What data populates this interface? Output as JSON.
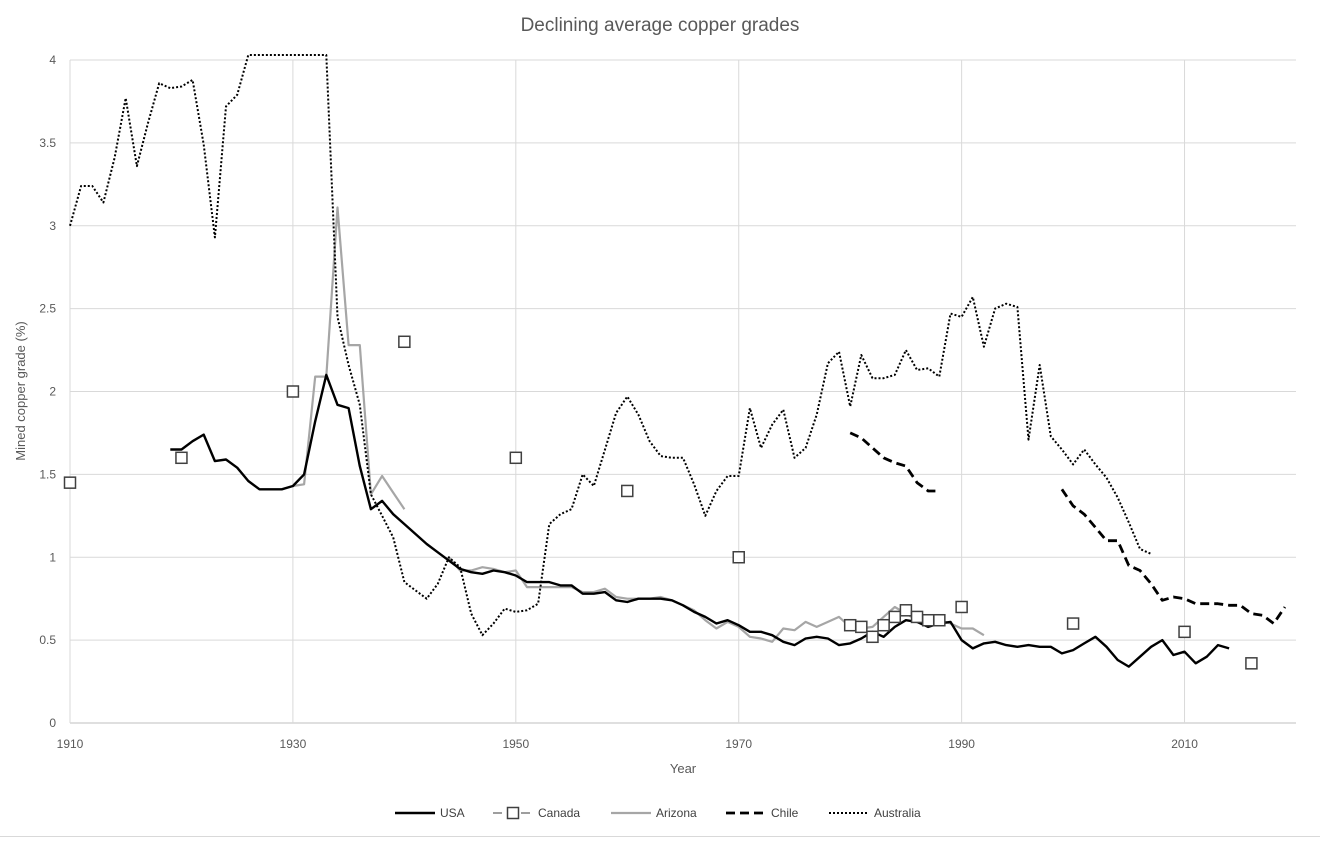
{
  "chart_data": {
    "type": "line",
    "title": "Declining average copper grades",
    "xlabel": "Year",
    "ylabel": "Mined copper grade (%)",
    "xlim": [
      1910,
      2020
    ],
    "ylim": [
      0,
      4
    ],
    "x_ticks": [
      1910,
      1930,
      1950,
      1970,
      1990,
      2010
    ],
    "y_ticks": [
      0,
      0.5,
      1,
      1.5,
      2,
      2.5,
      3,
      3.5,
      4
    ],
    "y_tick_labels": [
      "0",
      "0.5",
      "1",
      "1.5",
      "2",
      "2.5",
      "3",
      "3.5",
      "4"
    ],
    "grid": "on",
    "legend_position": "bottom",
    "series": [
      {
        "name": "USA",
        "style": "solid",
        "color": "#000000",
        "marker": "none",
        "x": [
          1919,
          1920,
          1921,
          1922,
          1923,
          1924,
          1925,
          1926,
          1927,
          1928,
          1929,
          1930,
          1931,
          1932,
          1933,
          1934,
          1935,
          1936,
          1937,
          1938,
          1939,
          1940,
          1941,
          1942,
          1943,
          1944,
          1945,
          1946,
          1947,
          1948,
          1949,
          1950,
          1951,
          1952,
          1953,
          1954,
          1955,
          1956,
          1957,
          1958,
          1959,
          1960,
          1961,
          1962,
          1963,
          1964,
          1965,
          1966,
          1967,
          1968,
          1969,
          1970,
          1971,
          1972,
          1973,
          1974,
          1975,
          1976,
          1977,
          1978,
          1979,
          1980,
          1981,
          1982,
          1983,
          1984,
          1985,
          1986,
          1987,
          1988,
          1989,
          1990,
          1991,
          1992,
          1993,
          1994,
          1995,
          1996,
          1997,
          1998,
          1999,
          2000,
          2001,
          2002,
          2003,
          2004,
          2005,
          2006,
          2007,
          2008,
          2009,
          2010,
          2011,
          2012,
          2013,
          2014
        ],
        "y": [
          1.65,
          1.65,
          1.7,
          1.74,
          1.58,
          1.59,
          1.54,
          1.46,
          1.41,
          1.41,
          1.41,
          1.43,
          1.5,
          1.82,
          2.1,
          1.92,
          1.9,
          1.55,
          1.29,
          1.34,
          1.26,
          1.2,
          1.14,
          1.08,
          1.03,
          0.98,
          0.93,
          0.91,
          0.9,
          0.92,
          0.91,
          0.89,
          0.85,
          0.85,
          0.85,
          0.83,
          0.83,
          0.78,
          0.78,
          0.79,
          0.74,
          0.73,
          0.75,
          0.75,
          0.75,
          0.74,
          0.71,
          0.67,
          0.64,
          0.6,
          0.62,
          0.59,
          0.55,
          0.55,
          0.53,
          0.49,
          0.47,
          0.51,
          0.52,
          0.51,
          0.47,
          0.48,
          0.51,
          0.55,
          0.52,
          0.58,
          0.62,
          0.61,
          0.58,
          0.6,
          0.61,
          0.5,
          0.45,
          0.48,
          0.49,
          0.47,
          0.46,
          0.47,
          0.46,
          0.46,
          0.42,
          0.44,
          0.48,
          0.52,
          0.46,
          0.38,
          0.34,
          0.4,
          0.46,
          0.5,
          0.41,
          0.43,
          0.36,
          0.4,
          0.47,
          0.45
        ]
      },
      {
        "name": "Canada",
        "style": "dashed",
        "color": "#7f7f7f",
        "marker": "square",
        "x": [
          1910,
          1920,
          1930,
          1940,
          1950,
          1960,
          1970,
          1980,
          1981,
          1982,
          1983,
          1984,
          1985,
          1986,
          1987,
          1988,
          1990,
          2000,
          2010,
          2016
        ],
        "y": [
          1.45,
          1.6,
          2.0,
          2.3,
          1.6,
          1.4,
          1.0,
          0.59,
          0.58,
          0.52,
          0.59,
          0.64,
          0.68,
          0.64,
          0.62,
          0.62,
          0.7,
          0.6,
          0.55,
          0.36
        ]
      },
      {
        "name": "Arizona",
        "style": "solid",
        "color": "#a6a6a6",
        "marker": "none",
        "x": [
          1930,
          1931,
          1932,
          1933,
          1934,
          1935,
          1936,
          1937,
          1938,
          1939,
          1940,
          null,
          1944,
          1945,
          1946,
          1947,
          1948,
          1949,
          1950,
          1951,
          1952,
          1953,
          1954,
          1955,
          1956,
          1957,
          1958,
          1959,
          1960,
          1961,
          1962,
          1963,
          1964,
          1965,
          1966,
          1967,
          1968,
          1969,
          1970,
          1971,
          1972,
          1973,
          1974,
          1975,
          1976,
          1977,
          1978,
          1979,
          1980,
          1981,
          1982,
          1983,
          1984,
          1985,
          1986,
          1987,
          1988,
          1989,
          1990,
          1991,
          1992
        ],
        "y": [
          1.43,
          1.44,
          2.09,
          2.09,
          3.11,
          2.28,
          2.28,
          1.38,
          1.49,
          1.39,
          1.29,
          null,
          1.0,
          0.92,
          0.92,
          0.94,
          0.93,
          0.91,
          0.92,
          0.82,
          0.82,
          0.82,
          0.82,
          0.82,
          0.79,
          0.79,
          0.81,
          0.76,
          0.75,
          0.75,
          0.75,
          0.76,
          0.74,
          0.71,
          0.68,
          0.62,
          0.57,
          0.61,
          0.58,
          0.52,
          0.51,
          0.49,
          0.57,
          0.56,
          0.61,
          0.58,
          0.61,
          0.64,
          0.58,
          0.57,
          0.58,
          0.64,
          0.7,
          0.66,
          0.62,
          0.6,
          0.62,
          0.6,
          0.57,
          0.57,
          0.53
        ]
      },
      {
        "name": "Chile",
        "style": "dashed",
        "color": "#000000",
        "marker": "none",
        "x": [
          1980,
          1981,
          1982,
          1983,
          1984,
          1985,
          1986,
          1987,
          1988,
          null,
          1999,
          2000,
          2001,
          2002,
          2003,
          2004,
          2005,
          2006,
          2007,
          2008,
          2009,
          2010,
          2011,
          2012,
          2013,
          2014,
          2015,
          2016,
          2017,
          2018,
          2019
        ],
        "y": [
          1.75,
          1.72,
          1.66,
          1.6,
          1.57,
          1.55,
          1.45,
          1.4,
          1.4,
          null,
          1.41,
          1.31,
          1.26,
          1.18,
          1.1,
          1.1,
          0.95,
          0.92,
          0.84,
          0.74,
          0.76,
          0.75,
          0.72,
          0.72,
          0.72,
          0.71,
          0.71,
          0.66,
          0.65,
          0.6,
          0.7
        ]
      },
      {
        "name": "Australia",
        "style": "dotted",
        "color": "#000000",
        "marker": "none",
        "x": [
          1910,
          1911,
          1912,
          1913,
          1914,
          1915,
          1916,
          1917,
          1918,
          1919,
          1920,
          1921,
          1922,
          1923,
          1924,
          1925,
          1926,
          1927,
          1928,
          1929,
          1930,
          1931,
          1932,
          1933,
          1934,
          1935,
          1936,
          1937,
          1938,
          1939,
          1940,
          1941,
          1942,
          1943,
          1944,
          1945,
          1946,
          1947,
          1948,
          1949,
          1950,
          1951,
          1952,
          1953,
          1954,
          1955,
          1956,
          1957,
          1958,
          1959,
          1960,
          1961,
          1962,
          1963,
          1964,
          1965,
          1966,
          1967,
          1968,
          1969,
          1970,
          1971,
          1972,
          1973,
          1974,
          1975,
          1976,
          1977,
          1978,
          1979,
          1980,
          1981,
          1982,
          1983,
          1984,
          1985,
          1986,
          1987,
          1988,
          1989,
          1990,
          1991,
          1992,
          1993,
          1994,
          1995,
          1996,
          1997,
          1998,
          1999,
          2000,
          2001,
          2002,
          2003,
          2004,
          2005,
          2006,
          2007
        ],
        "y": [
          3.0,
          3.24,
          3.24,
          3.14,
          3.41,
          3.77,
          3.36,
          3.62,
          3.86,
          3.83,
          3.84,
          3.88,
          3.49,
          2.93,
          3.72,
          3.79,
          4.2,
          4.2,
          4.2,
          4.2,
          4.2,
          4.2,
          4.2,
          4.2,
          2.45,
          2.16,
          1.92,
          1.38,
          1.25,
          1.12,
          0.85,
          0.8,
          0.75,
          0.84,
          1.0,
          0.94,
          0.66,
          0.53,
          0.6,
          0.69,
          0.67,
          0.68,
          0.72,
          1.2,
          1.26,
          1.29,
          1.5,
          1.43,
          1.65,
          1.87,
          1.97,
          1.86,
          1.7,
          1.61,
          1.6,
          1.6,
          1.44,
          1.25,
          1.4,
          1.49,
          1.49,
          1.9,
          1.66,
          1.8,
          1.89,
          1.6,
          1.66,
          1.86,
          2.17,
          2.24,
          1.91,
          2.22,
          2.08,
          2.08,
          2.1,
          2.25,
          2.13,
          2.14,
          2.09,
          2.47,
          2.45,
          2.57,
          2.27,
          2.5,
          2.53,
          2.51,
          1.71,
          2.16,
          1.73,
          1.65,
          1.56,
          1.65,
          1.56,
          1.48,
          1.36,
          1.21,
          1.05,
          1.02
        ]
      }
    ]
  }
}
